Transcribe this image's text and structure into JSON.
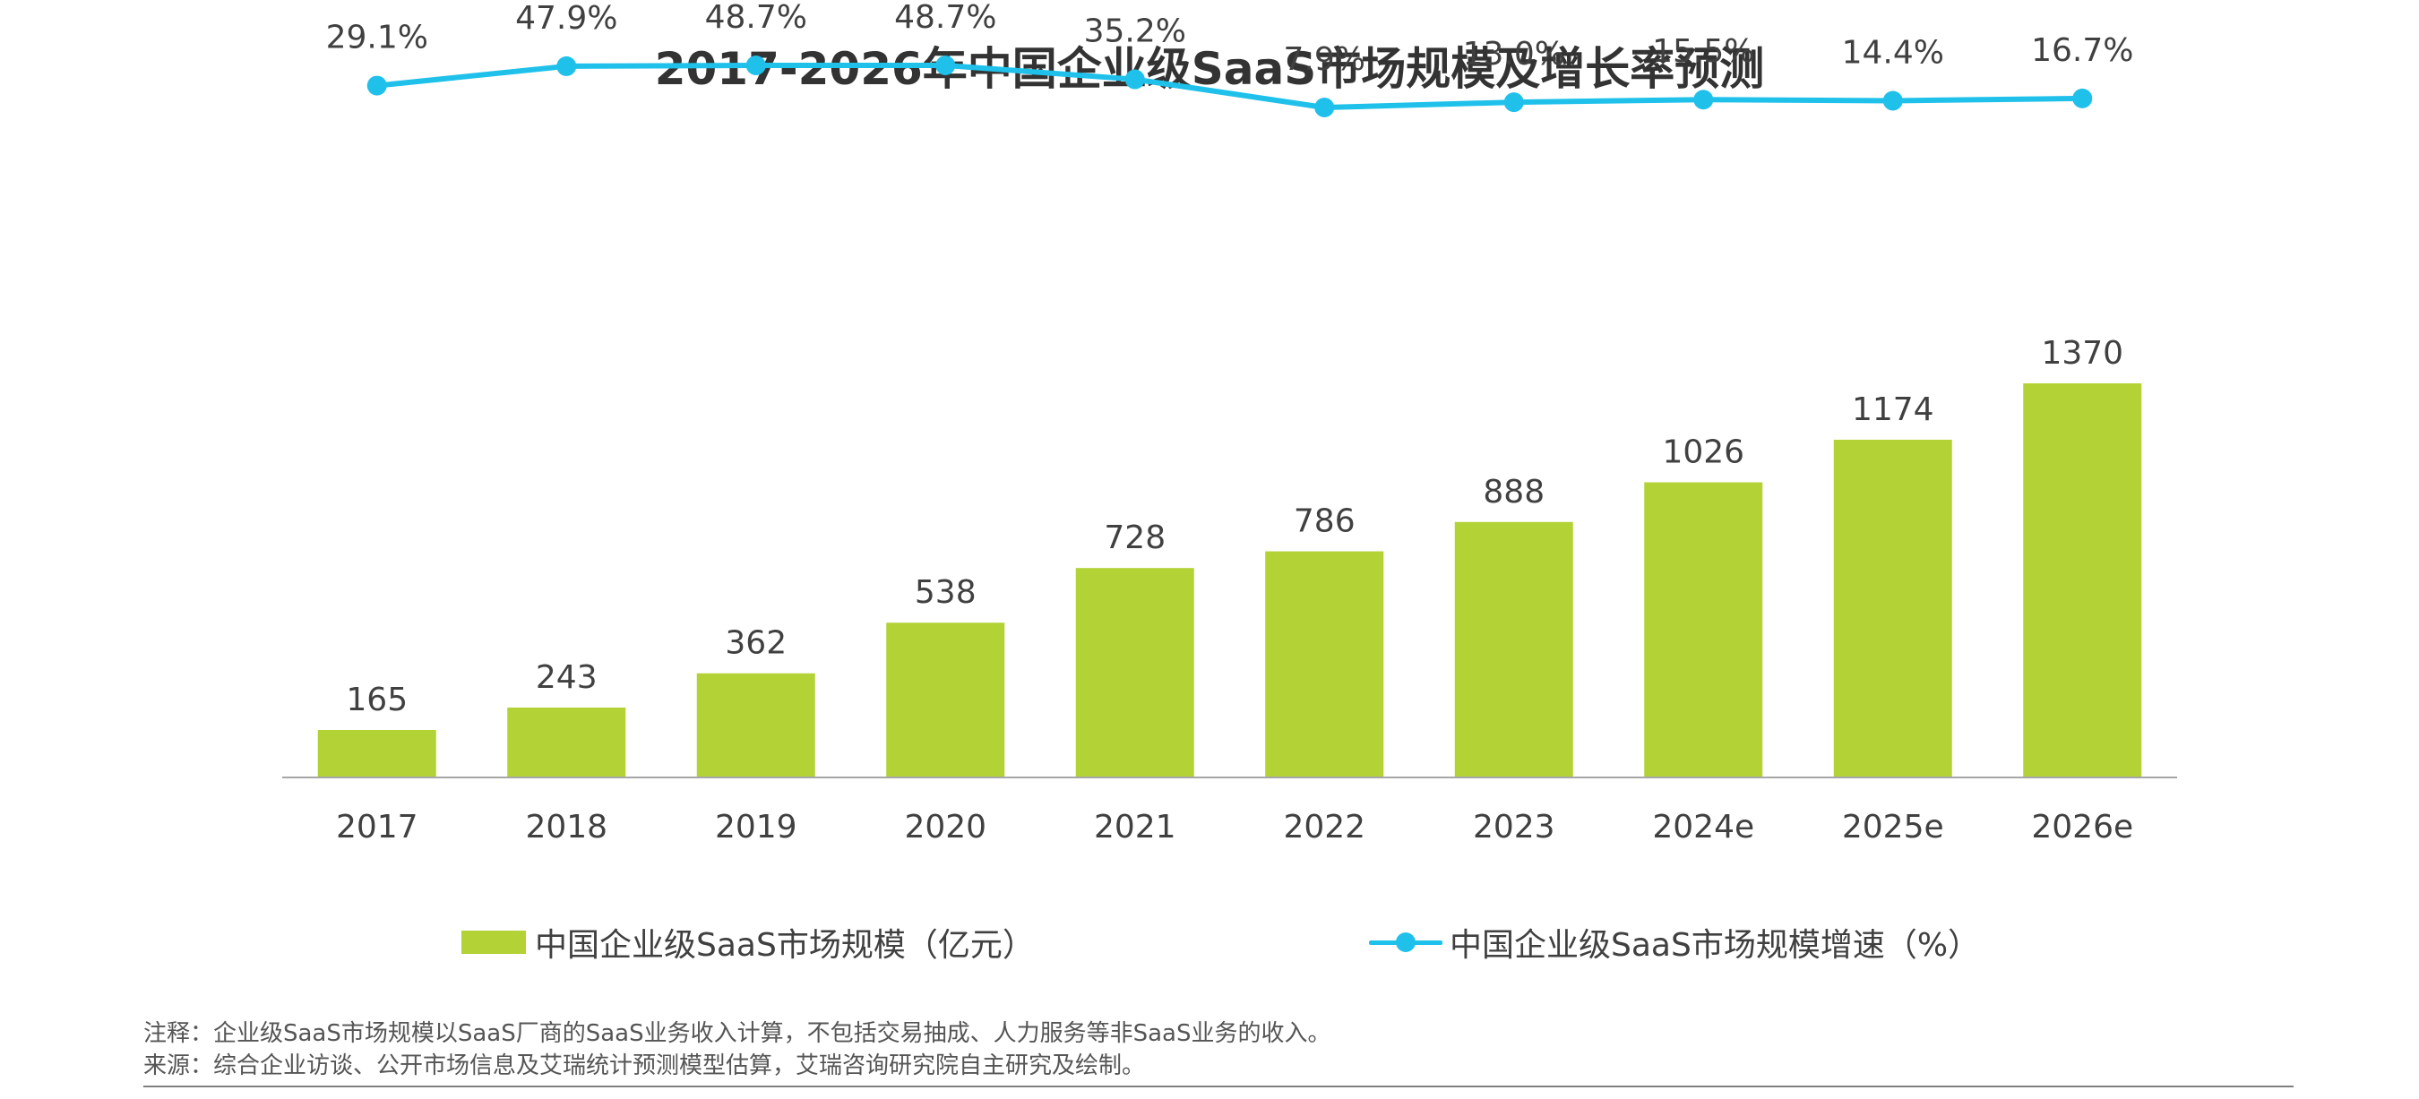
{
  "chart_data": {
    "type": "bar",
    "title": "2017-2026年中国企业级SaaS市场规模及增长率预测",
    "categories": [
      "2017",
      "2018",
      "2019",
      "2020",
      "2021",
      "2022",
      "2023",
      "2024e",
      "2025e",
      "2026e"
    ],
    "series": [
      {
        "name": "中国企业级SaaS市场规模（亿元）",
        "type": "bar",
        "values": [
          165,
          243,
          362,
          538,
          728,
          786,
          888,
          1026,
          1174,
          1370
        ],
        "labels": [
          "165",
          "243",
          "362",
          "538",
          "728",
          "786",
          "888",
          "1026",
          "1174",
          "1370"
        ],
        "color": "#B2D235"
      },
      {
        "name": "中国企业级SaaS市场规模增速（%）",
        "type": "line",
        "values": [
          29.1,
          47.9,
          48.7,
          48.7,
          35.2,
          7.9,
          13.0,
          15.5,
          14.4,
          16.7
        ],
        "labels": [
          "29.1%",
          "47.9%",
          "48.7%",
          "48.7%",
          "35.2%",
          "7.9%",
          "13.0%",
          "15.5%",
          "14.4%",
          "16.7%"
        ],
        "color": "#1FC1EA"
      }
    ],
    "ylim_bar": [
      0,
      1500
    ],
    "ylim_line": [
      -270,
      60
    ],
    "legend_position": "bottom",
    "grid": false
  },
  "notes": {
    "note": "注释：企业级SaaS市场规模以SaaS厂商的SaaS业务收入计算，不包括交易抽成、人力服务等非SaaS业务的收入。",
    "source": "来源：综合企业访谈、公开市场信息及艾瑞统计预测模型估算，艾瑞咨询研究院自主研究及绘制。"
  },
  "colors": {
    "axis": "#A6A6A6",
    "text": "#404040"
  }
}
